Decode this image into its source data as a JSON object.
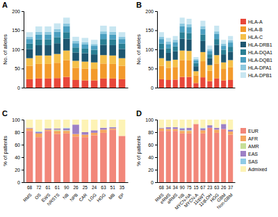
{
  "chart_data": [
    {
      "type": "bar",
      "title": "A",
      "stacked": true,
      "tick_labels": "y",
      "y_label": "No. of alleles",
      "categories": [
        null,
        null,
        null,
        null,
        null,
        null,
        null,
        null,
        null,
        null,
        null
      ],
      "ylim": [
        0,
        200
      ],
      "yticks": [
        0,
        50,
        100,
        150,
        200
      ],
      "series": [
        {
          "name": "HLA-A",
          "color": "#e8473a",
          "values": [
            22,
            24,
            24,
            25,
            28,
            20,
            19,
            19,
            24,
            24,
            22
          ]
        },
        {
          "name": "HLA-B",
          "color": "#f39a2b",
          "values": [
            35,
            38,
            38,
            40,
            44,
            32,
            31,
            30,
            39,
            38,
            35
          ]
        },
        {
          "name": "HLA-C",
          "color": "#f5c04a",
          "values": [
            20,
            22,
            22,
            23,
            25,
            18,
            18,
            17,
            22,
            22,
            20
          ]
        },
        {
          "name": "HLA-DRB1",
          "color": "#1d5670",
          "values": [
            24,
            27,
            27,
            28,
            31,
            22,
            22,
            21,
            27,
            27,
            24
          ]
        },
        {
          "name": "HLA-DQA1",
          "color": "#2a7f94",
          "values": [
            14,
            15,
            15,
            16,
            17,
            13,
            12,
            12,
            15,
            15,
            14
          ]
        },
        {
          "name": "HLA-DQB1",
          "color": "#4b9fc0",
          "values": [
            12,
            13,
            13,
            14,
            15,
            11,
            11,
            10,
            13,
            13,
            12
          ]
        },
        {
          "name": "HLA-DPA1",
          "color": "#8cc8df",
          "values": [
            6,
            7,
            7,
            7,
            8,
            6,
            6,
            5,
            7,
            7,
            6
          ]
        },
        {
          "name": "HLA-DPB1",
          "color": "#c8e6f1",
          "values": [
            12,
            14,
            14,
            15,
            15,
            11,
            11,
            11,
            15,
            14,
            12
          ]
        }
      ]
    },
    {
      "type": "bar",
      "title": "B",
      "stacked": true,
      "tick_labels": "y",
      "y_label": "No. of alleles",
      "legend": "right",
      "categories": [
        null,
        null,
        null,
        null,
        null,
        null,
        null,
        null,
        null,
        null,
        null
      ],
      "ylim": [
        0,
        200
      ],
      "yticks": [
        0,
        50,
        100,
        150,
        200
      ],
      "series": [
        {
          "name": "HLA-A",
          "color": "#e8473a",
          "values": [
            22,
            20,
            21,
            28,
            28,
            12,
            27,
            17,
            24,
            19,
            20
          ]
        },
        {
          "name": "HLA-B",
          "color": "#f39a2b",
          "values": [
            35,
            32,
            33,
            44,
            43,
            20,
            42,
            27,
            39,
            30,
            33
          ]
        },
        {
          "name": "HLA-C",
          "color": "#f5c04a",
          "values": [
            20,
            18,
            19,
            25,
            25,
            11,
            24,
            15,
            22,
            17,
            19
          ]
        },
        {
          "name": "HLA-DRB1",
          "color": "#1d5670",
          "values": [
            24,
            21,
            22,
            31,
            30,
            13,
            29,
            18,
            27,
            21,
            22
          ]
        },
        {
          "name": "HLA-DQA1",
          "color": "#2a7f94",
          "values": [
            14,
            12,
            13,
            17,
            17,
            8,
            17,
            10,
            15,
            12,
            13
          ]
        },
        {
          "name": "HLA-DQB1",
          "color": "#4b9fc0",
          "values": [
            12,
            11,
            11,
            15,
            15,
            7,
            14,
            9,
            13,
            10,
            11
          ]
        },
        {
          "name": "HLA-DPA1",
          "color": "#8cc8df",
          "values": [
            6,
            6,
            6,
            8,
            8,
            4,
            8,
            5,
            7,
            6,
            6
          ]
        },
        {
          "name": "HLA-DPB1",
          "color": "#c8e6f1",
          "values": [
            12,
            10,
            10,
            15,
            14,
            5,
            14,
            9,
            15,
            10,
            11
          ]
        }
      ]
    },
    {
      "type": "bar",
      "title": "C",
      "stacked": true,
      "y_label": "% of patients",
      "categories": [
        "RMS",
        "OS",
        "EWS",
        "NRSTS",
        "NB",
        "NPB",
        "CAR",
        "LGG",
        "HGG",
        "MB",
        "EP"
      ],
      "patients": [
        68,
        72,
        61,
        61,
        90,
        26,
        25,
        24,
        63,
        51,
        35
      ],
      "ylim": [
        0,
        100
      ],
      "yticks": [
        0,
        20,
        40,
        60,
        80,
        100
      ],
      "series": [
        {
          "name": "EUR",
          "color": "#f2877a",
          "values": [
            82,
            72,
            82,
            77,
            78,
            73,
            72,
            75,
            79,
            84,
            74
          ]
        },
        {
          "name": "AFR",
          "color": "#f5a65e",
          "values": [
            4,
            6,
            2,
            5,
            4,
            4,
            4,
            4,
            5,
            2,
            0
          ]
        },
        {
          "name": "AMR",
          "color": "#c6de97",
          "values": [
            0,
            0,
            0,
            2,
            1,
            0,
            0,
            0,
            0,
            0,
            0
          ]
        },
        {
          "name": "EAS",
          "color": "#9d80c6",
          "values": [
            1,
            2,
            2,
            2,
            3,
            15,
            4,
            4,
            3,
            2,
            0
          ]
        },
        {
          "name": "SAS",
          "color": "#8fcbe6",
          "values": [
            0,
            1,
            0,
            0,
            1,
            0,
            0,
            0,
            0,
            0,
            0
          ]
        },
        {
          "name": "Admixed",
          "color": "#fdf3b5",
          "values": [
            13,
            19,
            14,
            14,
            13,
            8,
            20,
            17,
            13,
            12,
            26
          ]
        }
      ]
    },
    {
      "type": "bar",
      "title": "D",
      "stacked": true,
      "y_label": "% of patients",
      "legend": "right",
      "categories": [
        "RMS",
        "eRMS",
        "aRMS",
        "NB",
        "MYCN-NA",
        "MYCN-A",
        "11qWT",
        "11qLOH",
        "HGG",
        "GBM",
        "Non-GBM"
      ],
      "patients": [
        68,
        34,
        34,
        90,
        75,
        15,
        67,
        23,
        63,
        26,
        37
      ],
      "ylim": [
        0,
        100
      ],
      "yticks": [
        0,
        20,
        40,
        60,
        80,
        100
      ],
      "series": [
        {
          "name": "EUR",
          "color": "#f2877a",
          "values": [
            82,
            82,
            82,
            78,
            78,
            93,
            78,
            87,
            79,
            85,
            76
          ]
        },
        {
          "name": "AFR",
          "color": "#f5a65e",
          "values": [
            4,
            3,
            3,
            4,
            4,
            0,
            5,
            0,
            5,
            0,
            5
          ]
        },
        {
          "name": "AMR",
          "color": "#c6de97",
          "values": [
            0,
            0,
            0,
            1,
            1,
            0,
            0,
            0,
            0,
            0,
            0
          ]
        },
        {
          "name": "EAS",
          "color": "#9d80c6",
          "values": [
            1,
            3,
            3,
            3,
            4,
            0,
            3,
            4,
            3,
            8,
            3
          ]
        },
        {
          "name": "SAS",
          "color": "#8fcbe6",
          "values": [
            0,
            0,
            0,
            1,
            0,
            0,
            1,
            0,
            0,
            0,
            0
          ]
        },
        {
          "name": "Admixed",
          "color": "#fdf3b5",
          "values": [
            13,
            12,
            12,
            13,
            13,
            7,
            13,
            9,
            13,
            7,
            16
          ]
        }
      ]
    }
  ]
}
